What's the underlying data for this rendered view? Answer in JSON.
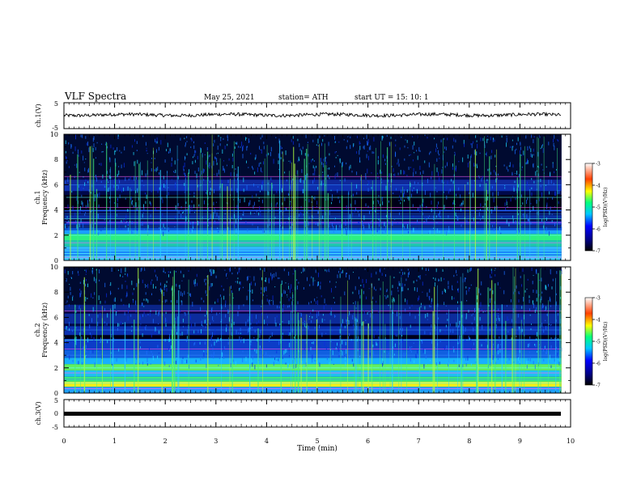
{
  "header": {
    "title": "VLF Spectra",
    "date": "May 25, 2021",
    "station": "station= ATH",
    "start_ut": "start UT = 15: 10: 1"
  },
  "chart_data": [
    {
      "type": "line",
      "panel": "ch1-voltage",
      "ylabel": "ch.1(V)",
      "ylim": [
        -5,
        5
      ],
      "yticks": [
        "5",
        "-5"
      ],
      "xlim": [
        0,
        10
      ],
      "series": [
        {
          "values_note": "noisy trace around 0.3 V",
          "mean": 0.3
        }
      ]
    },
    {
      "type": "heatmap",
      "panel": "ch1-spectrogram",
      "ylabel_line1": "ch.1",
      "ylabel_line2": "Frequency (kHz)",
      "ylim": [
        0,
        10
      ],
      "yticks": [
        "0",
        "2",
        "4",
        "6",
        "8",
        "10"
      ],
      "xlim": [
        0,
        10
      ],
      "colorbar": {
        "label": "log(PSD)(V²/Hz)",
        "ticks": [
          "-3",
          "-4",
          "-5",
          "-6",
          "-7"
        ],
        "range": [
          -7,
          -3
        ]
      }
    },
    {
      "type": "heatmap",
      "panel": "ch2-spectrogram",
      "ylabel_line1": "ch.2",
      "ylabel_line2": "Frequency (kHz)",
      "ylim": [
        0,
        10
      ],
      "yticks": [
        "0",
        "2",
        "4",
        "6",
        "8",
        "10"
      ],
      "xlim": [
        0,
        10
      ],
      "colorbar": {
        "label": "log(PSD)(V²/Hz)",
        "ticks": [
          "-3",
          "-4",
          "-5",
          "-6",
          "-7"
        ],
        "range": [
          -7,
          -3
        ]
      }
    },
    {
      "type": "line",
      "panel": "ch3-voltage",
      "ylabel": "ch.3(V)",
      "ylim": [
        -5,
        5
      ],
      "yticks": [
        "5",
        "0",
        "-5"
      ],
      "xlim": [
        0,
        10
      ],
      "series": [
        {
          "values_note": "flat trace",
          "mean": -1.5
        }
      ]
    }
  ],
  "xaxis": {
    "label": "Time (min)",
    "ticks": [
      "0",
      "1",
      "2",
      "3",
      "4",
      "5",
      "6",
      "7",
      "8",
      "9",
      "10"
    ],
    "range": [
      0,
      10
    ]
  }
}
